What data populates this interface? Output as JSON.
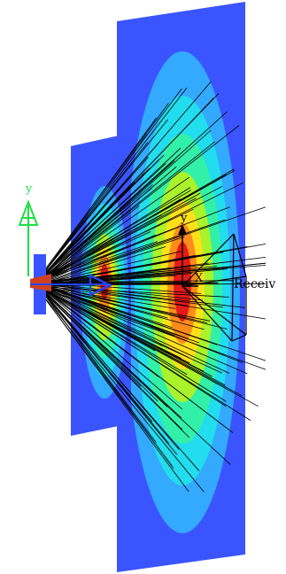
{
  "scene": {
    "global_axis_label": "y",
    "receiver_axis_y_label": "y",
    "receiver_axis_x_label": "X",
    "receiver_label": "Receiv",
    "colors": {
      "background": "#ffffff",
      "plane": "#3a55ff",
      "level_1": "#33aaff",
      "level_2": "#22ddee",
      "level_3": "#33f0a8",
      "level_4": "#aaf22a",
      "level_5": "#ffe01a",
      "level_6": "#ff8c1a",
      "level_7": "#e61a1a",
      "rays": "#000000",
      "global_axis": "#22dd44",
      "source": "#2244ff",
      "receiver_frame": "#000000"
    },
    "icons": [
      "global-axis-icon",
      "source-arrow-icon",
      "receiver-pyramid-icon"
    ]
  }
}
